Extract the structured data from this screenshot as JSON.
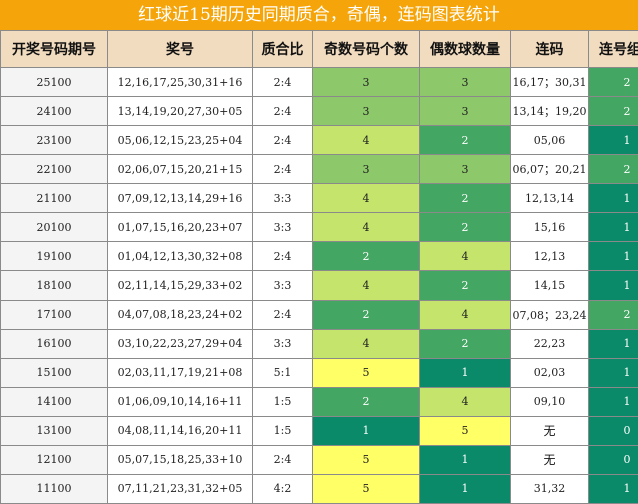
{
  "title": "红球近15期历史同期质合，奇偶，连码图表统计",
  "columns": [
    "开奖号码期号",
    "奖号",
    "质合比",
    "奇数号码个数",
    "偶数球数量",
    "连码",
    "连号组数"
  ],
  "rows": [
    {
      "period": "25100",
      "numbers": "12,16,17,25,30,31+16",
      "ratio": "2:4",
      "odd": "3",
      "even": "3",
      "consecutive": "16,17；30,31",
      "groups": "2"
    },
    {
      "period": "24100",
      "numbers": "13,14,19,20,27,30+05",
      "ratio": "2:4",
      "odd": "3",
      "even": "3",
      "consecutive": "13,14；19,20",
      "groups": "2"
    },
    {
      "period": "23100",
      "numbers": "05,06,12,15,23,25+04",
      "ratio": "2:4",
      "odd": "4",
      "even": "2",
      "consecutive": "05,06",
      "groups": "1"
    },
    {
      "period": "22100",
      "numbers": "02,06,07,15,20,21+15",
      "ratio": "2:4",
      "odd": "3",
      "even": "3",
      "consecutive": "06,07；20,21",
      "groups": "2"
    },
    {
      "period": "21100",
      "numbers": "07,09,12,13,14,29+16",
      "ratio": "3:3",
      "odd": "4",
      "even": "2",
      "consecutive": "12,13,14",
      "groups": "1"
    },
    {
      "period": "20100",
      "numbers": "01,07,15,16,20,23+07",
      "ratio": "3:3",
      "odd": "4",
      "even": "2",
      "consecutive": "15,16",
      "groups": "1"
    },
    {
      "period": "19100",
      "numbers": "01,04,12,13,30,32+08",
      "ratio": "2:4",
      "odd": "2",
      "even": "4",
      "consecutive": "12,13",
      "groups": "1"
    },
    {
      "period": "18100",
      "numbers": "02,11,14,15,29,33+02",
      "ratio": "3:3",
      "odd": "4",
      "even": "2",
      "consecutive": "14,15",
      "groups": "1"
    },
    {
      "period": "17100",
      "numbers": "04,07,08,18,23,24+02",
      "ratio": "2:4",
      "odd": "2",
      "even": "4",
      "consecutive": "07,08；23,24",
      "groups": "2"
    },
    {
      "period": "16100",
      "numbers": "03,10,22,23,27,29+04",
      "ratio": "3:3",
      "odd": "4",
      "even": "2",
      "consecutive": "22,23",
      "groups": "1"
    },
    {
      "period": "15100",
      "numbers": "02,03,11,17,19,21+08",
      "ratio": "5:1",
      "odd": "5",
      "even": "1",
      "consecutive": "02,03",
      "groups": "1"
    },
    {
      "period": "14100",
      "numbers": "01,06,09,10,14,16+11",
      "ratio": "1:5",
      "odd": "2",
      "even": "4",
      "consecutive": "09,10",
      "groups": "1"
    },
    {
      "period": "13100",
      "numbers": "04,08,11,14,16,20+11",
      "ratio": "1:5",
      "odd": "1",
      "even": "5",
      "consecutive": "无",
      "groups": "0"
    },
    {
      "period": "12100",
      "numbers": "05,07,15,18,25,33+10",
      "ratio": "2:4",
      "odd": "5",
      "even": "1",
      "consecutive": "无",
      "groups": "0"
    },
    {
      "period": "11100",
      "numbers": "07,11,21,23,31,32+05",
      "ratio": "4:2",
      "odd": "5",
      "even": "1",
      "consecutive": "31,32",
      "groups": "1"
    }
  ],
  "heat_colors": {
    "0": "#0b8a6a",
    "1": "#0b8a6a",
    "2": "#43a662",
    "3": "#8dc96b",
    "4": "#c4e46c",
    "5": "#ffff66"
  }
}
